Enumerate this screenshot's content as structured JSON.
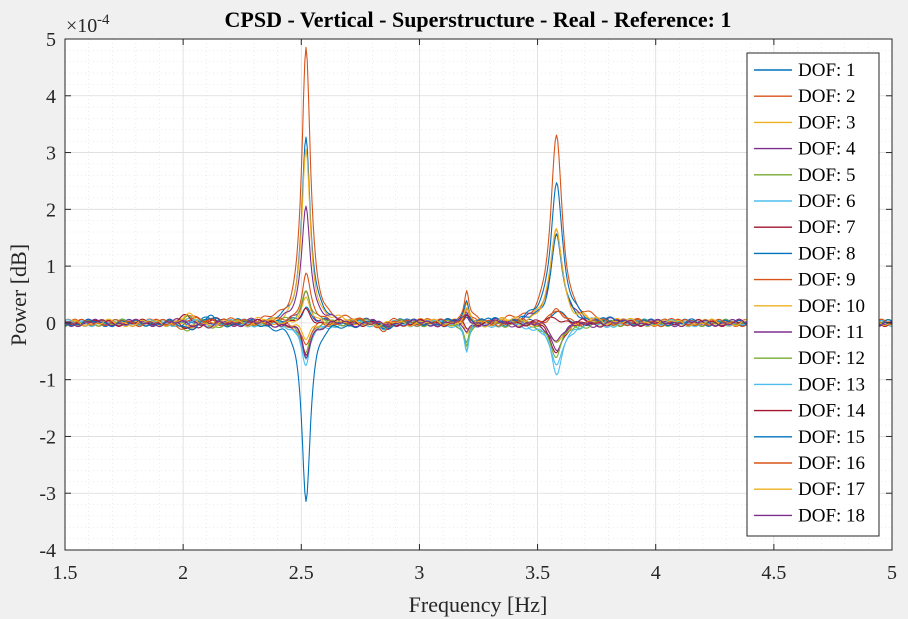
{
  "chart_data": {
    "type": "line",
    "title": "CPSD - Vertical - Superstructure - Real - Reference: 1",
    "xlabel": "Frequency [Hz]",
    "ylabel": "Power [dB]",
    "y_exponent_label": "×10",
    "y_exponent": "-4",
    "xlim": [
      1.5,
      5
    ],
    "ylim": [
      -4,
      5
    ],
    "y_scale_multiplier": 0.0001,
    "x_ticks": [
      1.5,
      2,
      2.5,
      3,
      3.5,
      4,
      4.5,
      5
    ],
    "x_tick_labels": [
      "1.5",
      "2",
      "2.5",
      "3",
      "3.5",
      "4",
      "4.5",
      "5"
    ],
    "y_ticks": [
      -4,
      -3,
      -2,
      -1,
      0,
      1,
      2,
      3,
      4,
      5
    ],
    "y_tick_labels": [
      "-4",
      "-3",
      "-2",
      "-1",
      "0",
      "1",
      "2",
      "3",
      "4",
      "5"
    ],
    "grid": true,
    "minor_grid": true,
    "legend_position": "top-right",
    "series": [
      {
        "name": "DOF: 1",
        "color": "#0072bd",
        "peaks": [
          [
            2.52,
            3.3
          ],
          [
            3.2,
            0.1
          ],
          [
            3.58,
            0.2
          ]
        ]
      },
      {
        "name": "DOF: 2",
        "color": "#d95319",
        "peaks": [
          [
            2.52,
            4.85
          ],
          [
            3.2,
            0.55
          ],
          [
            3.58,
            3.25
          ]
        ]
      },
      {
        "name": "DOF: 3",
        "color": "#edb120",
        "peaks": [
          [
            2.52,
            3.0
          ],
          [
            3.2,
            0.3
          ],
          [
            3.58,
            1.7
          ]
        ]
      },
      {
        "name": "DOF: 4",
        "color": "#7e2f8e",
        "peaks": [
          [
            2.52,
            2.1
          ],
          [
            3.2,
            0.2
          ],
          [
            3.58,
            1.6
          ]
        ]
      },
      {
        "name": "DOF: 5",
        "color": "#77ac30",
        "peaks": [
          [
            2.52,
            -0.5
          ],
          [
            3.2,
            -0.3
          ],
          [
            3.58,
            -0.4
          ]
        ]
      },
      {
        "name": "DOF: 6",
        "color": "#4dbeee",
        "peaks": [
          [
            2.52,
            -0.7
          ],
          [
            3.2,
            -0.55
          ],
          [
            3.58,
            -0.9
          ]
        ]
      },
      {
        "name": "DOF: 7",
        "color": "#a2142f",
        "peaks": [
          [
            2.52,
            -0.55
          ],
          [
            3.2,
            -0.1
          ],
          [
            3.58,
            -0.5
          ]
        ]
      },
      {
        "name": "DOF: 8",
        "color": "#0072bd",
        "peaks": [
          [
            2.52,
            0.3
          ],
          [
            3.2,
            0.2
          ],
          [
            3.58,
            1.55
          ]
        ]
      },
      {
        "name": "DOF: 9",
        "color": "#d95319",
        "peaks": [
          [
            2.52,
            -0.4
          ],
          [
            3.2,
            0.1
          ],
          [
            3.58,
            0.2
          ]
        ]
      },
      {
        "name": "DOF: 10",
        "color": "#edb120",
        "peaks": [
          [
            2.52,
            -0.3
          ],
          [
            3.2,
            -0.2
          ],
          [
            3.58,
            -0.35
          ]
        ]
      },
      {
        "name": "DOF: 11",
        "color": "#7e2f8e",
        "peaks": [
          [
            2.52,
            0.55
          ],
          [
            3.2,
            -0.15
          ],
          [
            3.58,
            -0.45
          ]
        ]
      },
      {
        "name": "DOF: 12",
        "color": "#77ac30",
        "peaks": [
          [
            2.52,
            0.6
          ],
          [
            3.2,
            -0.4
          ],
          [
            3.58,
            -0.6
          ]
        ]
      },
      {
        "name": "DOF: 13",
        "color": "#4dbeee",
        "peaks": [
          [
            2.52,
            -0.75
          ],
          [
            3.2,
            -0.5
          ],
          [
            3.58,
            -0.8
          ]
        ]
      },
      {
        "name": "DOF: 14",
        "color": "#a2142f",
        "peaks": [
          [
            2.52,
            0.2
          ],
          [
            3.2,
            0.1
          ],
          [
            3.58,
            0.1
          ]
        ]
      },
      {
        "name": "DOF: 15",
        "color": "#0072bd",
        "peaks": [
          [
            2.52,
            -3.1
          ],
          [
            3.2,
            0.4
          ],
          [
            3.58,
            2.5
          ]
        ]
      },
      {
        "name": "DOF: 16",
        "color": "#d95319",
        "peaks": [
          [
            2.52,
            0.9
          ],
          [
            3.2,
            0.3
          ],
          [
            3.58,
            0.2
          ]
        ]
      },
      {
        "name": "DOF: 17",
        "color": "#edb120",
        "peaks": [
          [
            2.52,
            0.4
          ],
          [
            3.2,
            0.2
          ],
          [
            3.58,
            1.65
          ]
        ]
      },
      {
        "name": "DOF: 18",
        "color": "#7e2f8e",
        "peaks": [
          [
            2.52,
            -0.6
          ],
          [
            3.2,
            0.15
          ],
          [
            3.58,
            -0.3
          ]
        ]
      }
    ]
  }
}
